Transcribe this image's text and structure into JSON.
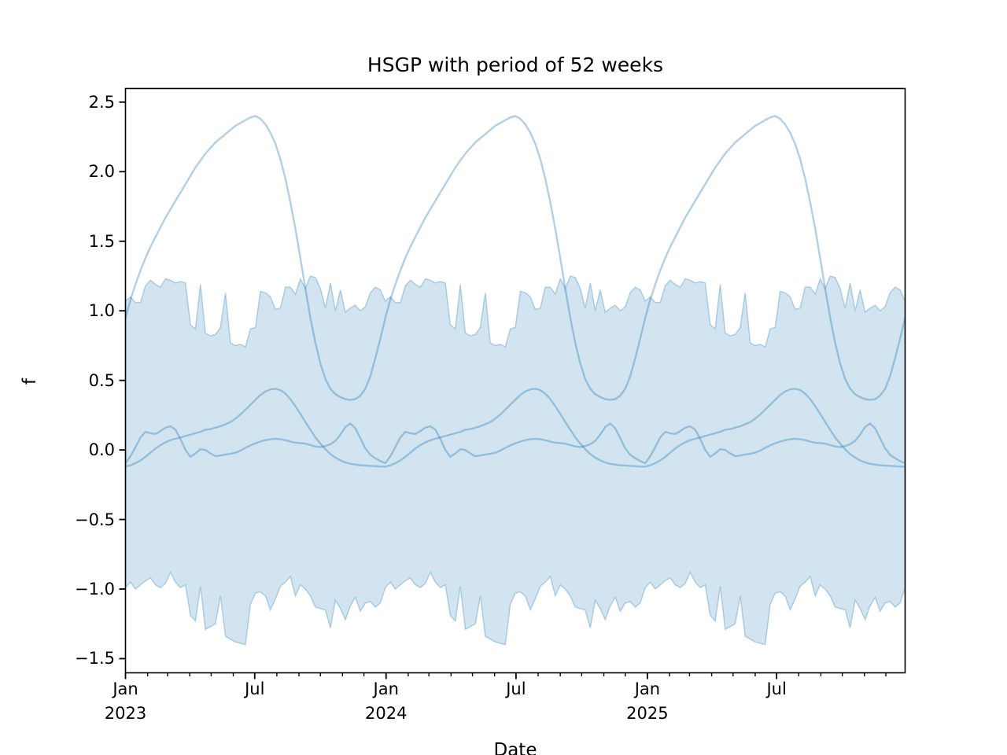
{
  "figure": {
    "background": "#ffffff",
    "title": "HSGP with period of 52 weeks"
  },
  "chart_data": {
    "type": "line",
    "title": "HSGP with period of 52 weeks",
    "xlabel": "Date",
    "ylabel": "f",
    "ylim": [
      -1.6,
      2.6
    ],
    "x_range_weeks": [
      0,
      156
    ],
    "period_weeks": 52,
    "grid": false,
    "legend": "none",
    "colors": {
      "line": "#1f77b4",
      "line_opacity": 0.35,
      "band_fill": "#1f77b4",
      "band_fill_opacity": 0.2,
      "band_edge_opacity": 0.3,
      "axis": "#000000"
    },
    "y_axis": {
      "label": "f",
      "ticks": [
        {
          "v": 2.5,
          "label": "2.5"
        },
        {
          "v": 2.0,
          "label": "2.0"
        },
        {
          "v": 1.5,
          "label": "1.5"
        },
        {
          "v": 1.0,
          "label": "1.0"
        },
        {
          "v": 0.5,
          "label": "0.5"
        },
        {
          "v": 0.0,
          "label": "0.0"
        },
        {
          "v": -0.5,
          "label": "−0.5"
        },
        {
          "v": -1.0,
          "label": "−1.0"
        },
        {
          "v": -1.5,
          "label": "−1.5"
        }
      ]
    },
    "x_axis": {
      "label": "Date",
      "major_ticks": [
        {
          "week": 0,
          "line1": "Jan",
          "line2": "2023"
        },
        {
          "week": 25.857,
          "line1": "Jul",
          "line2": ""
        },
        {
          "week": 52.143,
          "line1": "Jan",
          "line2": "2024"
        },
        {
          "week": 78.143,
          "line1": "Jul",
          "line2": ""
        },
        {
          "week": 104.429,
          "line1": "Jan",
          "line2": "2025"
        },
        {
          "week": 130.286,
          "line1": "Jul",
          "line2": ""
        }
      ],
      "minor_tick_weeks": [
        4.429,
        8.429,
        12.857,
        17.143,
        21.571,
        30.286,
        34.714,
        39.0,
        43.429,
        47.714,
        56.571,
        60.714,
        65.143,
        69.429,
        73.857,
        82.571,
        87.0,
        91.286,
        95.714,
        100.0,
        108.857,
        112.857,
        117.286,
        121.571,
        126.0,
        134.714,
        139.143,
        143.429,
        147.857,
        152.143
      ]
    },
    "band": {
      "name": "hdi-band",
      "weekly_upper_one_period": [
        1.07,
        1.1,
        1.06,
        1.06,
        1.18,
        1.22,
        1.19,
        1.17,
        1.23,
        1.22,
        1.2,
        1.21,
        1.2,
        0.9,
        0.87,
        1.19,
        0.84,
        0.82,
        0.83,
        0.88,
        1.13,
        0.77,
        0.75,
        0.76,
        0.74,
        0.87,
        0.88,
        1.14,
        1.13,
        1.1,
        1.01,
        1.02,
        1.17,
        1.17,
        1.12,
        1.23,
        1.16,
        1.25,
        1.24,
        1.16,
        1.02,
        1.2,
        1.0,
        1.15,
        0.99,
        1.02,
        1.04,
        1.0,
        1.03,
        1.13,
        1.17,
        1.15
      ],
      "weekly_lower_one_period": [
        -0.99,
        -0.95,
        -1.0,
        -0.97,
        -0.94,
        -0.92,
        -0.97,
        -0.99,
        -0.96,
        -0.88,
        -0.95,
        -0.99,
        -0.97,
        -1.19,
        -1.23,
        -0.98,
        -1.29,
        -1.27,
        -1.25,
        -1.05,
        -1.34,
        -1.36,
        -1.38,
        -1.39,
        -1.4,
        -1.11,
        -1.03,
        -1.02,
        -1.05,
        -1.15,
        -1.07,
        -0.98,
        -0.95,
        -0.91,
        -1.05,
        -0.97,
        -1.0,
        -1.05,
        -1.13,
        -1.14,
        -1.15,
        -1.28,
        -1.08,
        -1.14,
        -1.22,
        -1.12,
        -1.06,
        -1.16,
        -1.1,
        -1.09,
        -1.13,
        -1.1
      ]
    },
    "series": [
      {
        "name": "sample-large-annual",
        "weekly_values_one_period": [
          0.95,
          1.08,
          1.19,
          1.29,
          1.38,
          1.46,
          1.53,
          1.6,
          1.67,
          1.73,
          1.79,
          1.85,
          1.91,
          1.97,
          2.03,
          2.08,
          2.13,
          2.17,
          2.21,
          2.24,
          2.27,
          2.3,
          2.33,
          2.35,
          2.37,
          2.39,
          2.4,
          2.38,
          2.34,
          2.28,
          2.2,
          2.09,
          1.95,
          1.78,
          1.59,
          1.38,
          1.16,
          0.95,
          0.77,
          0.62,
          0.51,
          0.44,
          0.4,
          0.38,
          0.365,
          0.36,
          0.365,
          0.39,
          0.44,
          0.53,
          0.66,
          0.8
        ]
      },
      {
        "name": "sample-medium-hump",
        "weekly_values_one_period": [
          -0.12,
          -0.11,
          -0.095,
          -0.075,
          -0.05,
          -0.02,
          0.01,
          0.035,
          0.055,
          0.07,
          0.08,
          0.09,
          0.1,
          0.11,
          0.12,
          0.13,
          0.145,
          0.15,
          0.16,
          0.17,
          0.185,
          0.2,
          0.225,
          0.255,
          0.29,
          0.325,
          0.36,
          0.395,
          0.42,
          0.435,
          0.44,
          0.43,
          0.405,
          0.365,
          0.315,
          0.26,
          0.2,
          0.145,
          0.09,
          0.045,
          0.005,
          -0.03,
          -0.055,
          -0.075,
          -0.09,
          -0.1,
          -0.105,
          -0.11,
          -0.112,
          -0.115,
          -0.117,
          -0.119
        ]
      },
      {
        "name": "sample-small-wiggly",
        "weekly_values_one_period": [
          -0.095,
          -0.045,
          0.02,
          0.09,
          0.13,
          0.12,
          0.115,
          0.135,
          0.16,
          0.17,
          0.145,
          0.08,
          0.0,
          -0.05,
          -0.025,
          0.005,
          0.0,
          -0.025,
          -0.045,
          -0.04,
          -0.033,
          -0.028,
          -0.02,
          -0.005,
          0.015,
          0.033,
          0.048,
          0.06,
          0.07,
          0.077,
          0.08,
          0.077,
          0.07,
          0.06,
          0.052,
          0.05,
          0.045,
          0.035,
          0.025,
          0.02,
          0.028,
          0.042,
          0.065,
          0.11,
          0.165,
          0.19,
          0.155,
          0.085,
          0.01,
          -0.035,
          -0.06,
          -0.08
        ]
      }
    ]
  }
}
